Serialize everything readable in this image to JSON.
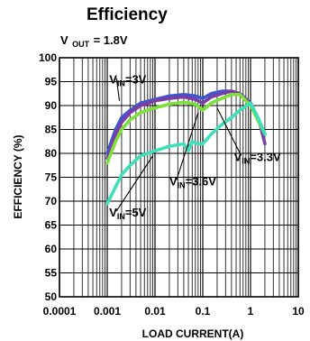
{
  "chart_data": {
    "type": "line",
    "title": "Efficiency",
    "subtitle": {
      "main": "V",
      "sub": "OUT",
      "rest": " = 1.8V"
    },
    "xlabel": "LOAD CURRENT(A)",
    "ylabel": "EFFICIENCY (%)",
    "x_scale": "log",
    "xlim": [
      0.0001,
      10
    ],
    "ylim": [
      50,
      100
    ],
    "x_ticks": [
      {
        "value": 0.0001,
        "label": "0.0001"
      },
      {
        "value": 0.001,
        "label": "0.001"
      },
      {
        "value": 0.01,
        "label": "0.01"
      },
      {
        "value": 0.1,
        "label": "0.1"
      },
      {
        "value": 1,
        "label": "1"
      },
      {
        "value": 10,
        "label": "10"
      }
    ],
    "y_ticks": [
      {
        "value": 50,
        "label": "50"
      },
      {
        "value": 55,
        "label": "55"
      },
      {
        "value": 60,
        "label": "60"
      },
      {
        "value": 65,
        "label": "65"
      },
      {
        "value": 70,
        "label": "70"
      },
      {
        "value": 75,
        "label": "75"
      },
      {
        "value": 80,
        "label": "80"
      },
      {
        "value": 85,
        "label": "85"
      },
      {
        "value": 90,
        "label": "90"
      },
      {
        "value": 95,
        "label": "95"
      },
      {
        "value": 100,
        "label": "100"
      }
    ],
    "grid": true,
    "series": [
      {
        "key": "vin3",
        "color": "#3f55d0",
        "points": [
          [
            0.001,
            80
          ],
          [
            0.0015,
            85
          ],
          [
            0.002,
            87.5
          ],
          [
            0.003,
            89
          ],
          [
            0.005,
            90.5
          ],
          [
            0.01,
            91.3
          ],
          [
            0.02,
            92
          ],
          [
            0.04,
            92.3
          ],
          [
            0.07,
            92
          ],
          [
            0.1,
            91.5
          ],
          [
            0.15,
            92.5
          ],
          [
            0.25,
            93
          ],
          [
            0.4,
            93
          ],
          [
            0.6,
            92.5
          ],
          [
            1,
            90.5
          ],
          [
            1.5,
            87
          ],
          [
            2,
            84
          ]
        ]
      },
      {
        "key": "vin33",
        "color": "#7a3fa3",
        "points": [
          [
            0.001,
            79
          ],
          [
            0.0015,
            84
          ],
          [
            0.002,
            86.5
          ],
          [
            0.003,
            88.5
          ],
          [
            0.005,
            90
          ],
          [
            0.01,
            91
          ],
          [
            0.02,
            91.5
          ],
          [
            0.04,
            91.8
          ],
          [
            0.07,
            91.3
          ],
          [
            0.1,
            90.5
          ],
          [
            0.15,
            91.8
          ],
          [
            0.25,
            92.5
          ],
          [
            0.4,
            93
          ],
          [
            0.6,
            92.5
          ],
          [
            1,
            90.5
          ],
          [
            1.5,
            87
          ],
          [
            2,
            82
          ]
        ]
      },
      {
        "key": "vin36",
        "color": "#7de03a",
        "points": [
          [
            0.001,
            78
          ],
          [
            0.0015,
            82.5
          ],
          [
            0.002,
            85
          ],
          [
            0.003,
            87
          ],
          [
            0.005,
            88.5
          ],
          [
            0.01,
            89.5
          ],
          [
            0.02,
            90.3
          ],
          [
            0.04,
            90.7
          ],
          [
            0.07,
            90.3
          ],
          [
            0.1,
            89
          ],
          [
            0.15,
            90.5
          ],
          [
            0.25,
            91.5
          ],
          [
            0.4,
            92.3
          ],
          [
            0.6,
            92.3
          ],
          [
            1,
            90
          ],
          [
            1.5,
            86.5
          ],
          [
            2,
            84
          ]
        ]
      },
      {
        "key": "vin5",
        "color": "#3de0b8",
        "points": [
          [
            0.001,
            69.5
          ],
          [
            0.0015,
            73
          ],
          [
            0.002,
            75.5
          ],
          [
            0.003,
            77.5
          ],
          [
            0.005,
            79.5
          ],
          [
            0.01,
            80.5
          ],
          [
            0.02,
            81.5
          ],
          [
            0.04,
            82
          ],
          [
            0.05,
            80.5
          ],
          [
            0.06,
            82.5
          ],
          [
            0.08,
            82
          ],
          [
            0.1,
            82
          ],
          [
            0.15,
            84
          ],
          [
            0.25,
            86
          ],
          [
            0.4,
            87.5
          ],
          [
            0.6,
            89
          ],
          [
            1,
            90.5
          ],
          [
            1.5,
            87
          ],
          [
            2,
            84
          ]
        ]
      }
    ],
    "annotations": [
      {
        "key": "vin3",
        "main": "V",
        "sub": "IN",
        "rest": "=3V",
        "at": [
          0.0011,
          94.6
        ],
        "leader_to": [
          0.0018,
          91
        ]
      },
      {
        "key": "vin33",
        "main": "V",
        "sub": "IN",
        "rest": "=3.3V",
        "at": [
          0.45,
          78.4
        ],
        "leader_to": [
          0.2,
          89.5
        ]
      },
      {
        "key": "vin36",
        "main": "V",
        "sub": "IN",
        "rest": "=3.6V",
        "at": [
          0.02,
          73.3
        ],
        "leader_to": [
          0.08,
          88.5
        ]
      },
      {
        "key": "vin5",
        "main": "V",
        "sub": "IN",
        "rest": "=5V",
        "at": [
          0.0011,
          66.8
        ],
        "leader_to": [
          0.009,
          79.5
        ]
      }
    ]
  }
}
